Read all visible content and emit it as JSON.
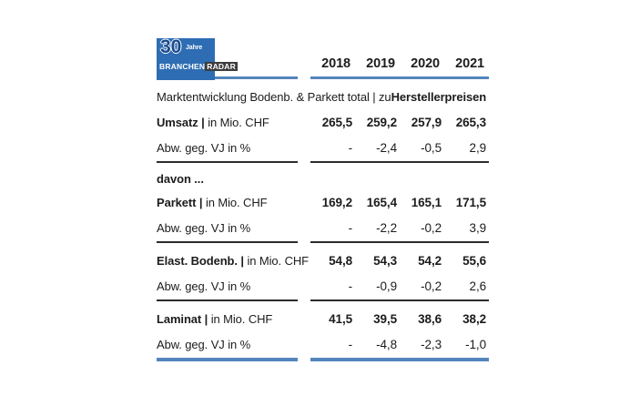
{
  "logo": {
    "number": "30",
    "number_suffix": "Jahre",
    "brand_left": "BRANCHEN",
    "brand_right": "RADAR",
    "colors": {
      "square": "#2e6db4",
      "dark_block": "#3d3d3d",
      "brand_text": "#ffffff"
    }
  },
  "table": {
    "columns": [
      "2018",
      "2019",
      "2020",
      "2021"
    ],
    "title": {
      "regular": "Marktentwicklung Bodenb. & Parkett total | zu ",
      "bold": "Herstellerpreisen"
    },
    "rows": [
      {
        "type": "data",
        "emphasis": true,
        "label_strong": "Umsatz |",
        "label": " in Mio. CHF",
        "values": [
          "265,5",
          "259,2",
          "257,9",
          "265,3"
        ]
      },
      {
        "type": "data",
        "emphasis": false,
        "label_strong": "",
        "label": "Abw. geg. VJ in %",
        "values": [
          "-",
          "-2,4",
          "-0,5",
          "2,9"
        ]
      },
      {
        "type": "rule"
      },
      {
        "type": "subhead",
        "label": "davon ..."
      },
      {
        "type": "data",
        "emphasis": true,
        "label_strong": "Parkett |",
        "label": " in Mio. CHF",
        "values": [
          "169,2",
          "165,4",
          "165,1",
          "171,5"
        ]
      },
      {
        "type": "data",
        "emphasis": false,
        "label_strong": "",
        "label": "Abw. geg. VJ in %",
        "values": [
          "-",
          "-2,2",
          "-0,2",
          "3,9"
        ]
      },
      {
        "type": "rule"
      },
      {
        "type": "data",
        "emphasis": true,
        "label_strong": "Elast. Bodenb. |",
        "label": " in Mio. CHF",
        "values": [
          "54,8",
          "54,3",
          "54,2",
          "55,6"
        ]
      },
      {
        "type": "data",
        "emphasis": false,
        "label_strong": "",
        "label": "Abw. geg. VJ in %",
        "values": [
          "-",
          "-0,9",
          "-0,2",
          "2,6"
        ]
      },
      {
        "type": "rule"
      },
      {
        "type": "data",
        "emphasis": true,
        "label_strong": "Laminat |",
        "label": " in Mio. CHF",
        "values": [
          "41,5",
          "39,5",
          "38,6",
          "38,2"
        ]
      },
      {
        "type": "data",
        "emphasis": false,
        "label_strong": "",
        "label": "Abw. geg. VJ in %",
        "values": [
          "-",
          "-4,8",
          "-2,3",
          "-1,0"
        ]
      }
    ],
    "colors": {
      "accent_line": "#5485bd",
      "section_line": "#2b2b2b",
      "text": "#1c1c1c"
    }
  }
}
